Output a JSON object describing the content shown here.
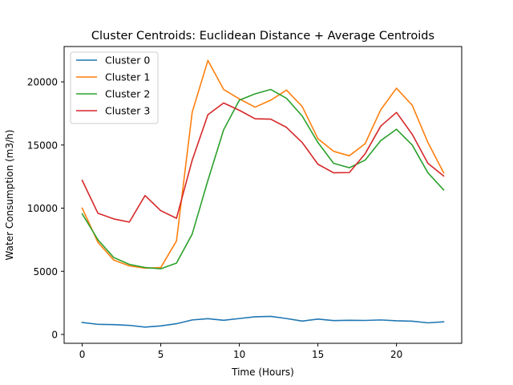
{
  "chart_data": {
    "type": "line",
    "title": "Cluster Centroids: Euclidean Distance + Average Centroids",
    "xlabel": "Time (Hours)",
    "ylabel": "Water Consumption (m3/h)",
    "xlim": [
      -1.15,
      24.15
    ],
    "ylim": [
      -700,
      22800
    ],
    "xticks": [
      0,
      5,
      10,
      15,
      20
    ],
    "xtick_labels": [
      "0",
      "5",
      "10",
      "15",
      "20"
    ],
    "yticks": [
      0,
      5000,
      10000,
      15000,
      20000
    ],
    "ytick_labels": [
      "0",
      "5000",
      "10000",
      "15000",
      "20000"
    ],
    "grid": false,
    "legend_position": "upper-left",
    "x": [
      0,
      1,
      2,
      3,
      4,
      5,
      6,
      7,
      8,
      9,
      10,
      11,
      12,
      13,
      14,
      15,
      16,
      17,
      18,
      19,
      20,
      21,
      22,
      23
    ],
    "series": [
      {
        "name": "Cluster 0",
        "color": "#1f77b4",
        "values": [
          950,
          800,
          780,
          720,
          580,
          680,
          850,
          1150,
          1250,
          1120,
          1260,
          1400,
          1430,
          1260,
          1060,
          1220,
          1100,
          1120,
          1110,
          1150,
          1080,
          1050,
          920,
          1000
        ]
      },
      {
        "name": "Cluster 1",
        "color": "#ff7f0e",
        "values": [
          10000,
          7300,
          5900,
          5430,
          5250,
          5300,
          7400,
          17600,
          21700,
          19400,
          18650,
          18000,
          18550,
          19350,
          18050,
          15500,
          14500,
          14150,
          15100,
          17800,
          19500,
          18150,
          15200,
          12800
        ]
      },
      {
        "name": "Cluster 2",
        "color": "#2ca02c",
        "values": [
          9550,
          7500,
          6100,
          5550,
          5300,
          5200,
          5650,
          7950,
          12200,
          16200,
          18550,
          19050,
          19400,
          18700,
          17300,
          15200,
          13550,
          13200,
          13800,
          15350,
          16250,
          15000,
          12800,
          11450
        ]
      },
      {
        "name": "Cluster 3",
        "color": "#d62728",
        "values": [
          12200,
          9600,
          9150,
          8900,
          11000,
          9800,
          9200,
          13800,
          17400,
          18330,
          17750,
          17080,
          17050,
          16400,
          15200,
          13480,
          12800,
          12820,
          14300,
          16500,
          17580,
          15850,
          13550,
          12550
        ]
      }
    ]
  }
}
